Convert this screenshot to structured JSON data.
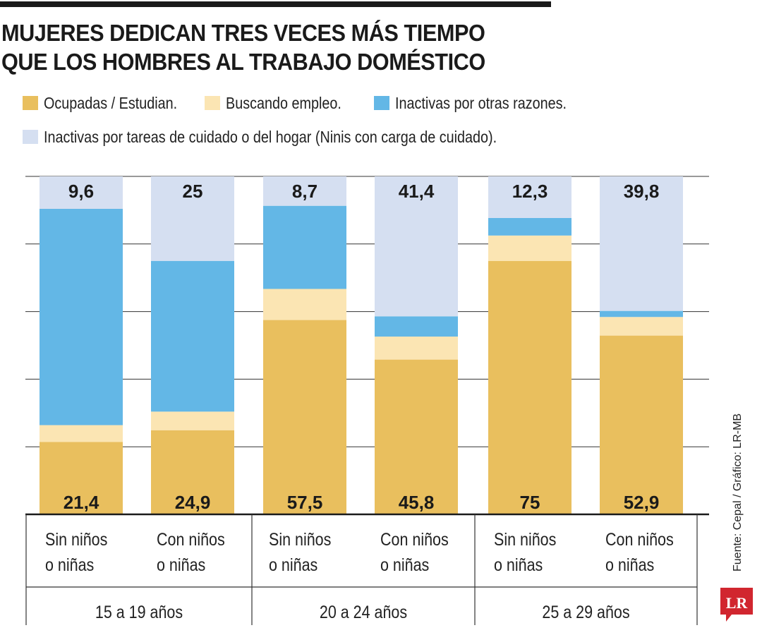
{
  "header": {
    "title_line1": "MUJERES DEDICAN TRES VECES MÁS TIEMPO",
    "title_line2": "QUE LOS HOMBRES AL TRABAJO DOMÉSTICO"
  },
  "legend": [
    {
      "label": "Ocupadas / Estudian.",
      "color": "#e9bf5e"
    },
    {
      "label": "Buscando empleo.",
      "color": "#fbe5b3"
    },
    {
      "label": "Inactivas por otras razones.",
      "color": "#63b7e6"
    },
    {
      "label": "Inactivas por tareas de cuidado o del hogar (Ninis con carga de cuidado).",
      "color": "#d5dff1"
    }
  ],
  "chart_data": {
    "type": "bar",
    "stacked": true,
    "ylim": [
      0,
      100
    ],
    "grid": true,
    "categories": [
      {
        "line1": "Sin niños",
        "line2": "o niñas",
        "group": "15 a 19 años"
      },
      {
        "line1": "Con niños",
        "line2": "o niñas",
        "group": "15 a 19 años"
      },
      {
        "line1": "Sin niños",
        "line2": "o niñas",
        "group": "20 a 24 años"
      },
      {
        "line1": "Con niños",
        "line2": "o niñas",
        "group": "20 a 24 años"
      },
      {
        "line1": "Sin niños",
        "line2": "o niñas",
        "group": "25 a 29 años"
      },
      {
        "line1": "Con niños",
        "line2": "o niñas",
        "group": "25 a 29 años"
      }
    ],
    "groups": [
      "15 a 19 años",
      "20 a 24 años",
      "25 a 29 años"
    ],
    "series": [
      {
        "name": "Ocupadas / Estudian.",
        "color": "#e9bf5e",
        "values": [
          21.4,
          24.9,
          57.5,
          45.8,
          75,
          52.9
        ],
        "labels": [
          "21,4",
          "24,9",
          "57,5",
          "45,8",
          "75",
          "52,9"
        ]
      },
      {
        "name": "Buscando empleo.",
        "color": "#fbe5b3",
        "values": [
          5,
          5.5,
          9.2,
          6.8,
          7.5,
          5.5
        ]
      },
      {
        "name": "Inactivas por otras razones.",
        "color": "#63b7e6",
        "values": [
          64,
          44.6,
          24.6,
          6,
          5.2,
          1.8
        ]
      },
      {
        "name": "Inactivas por tareas de cuidado o del hogar (Ninis con carga de cuidado).",
        "color": "#d5dff1",
        "values": [
          9.6,
          25,
          8.7,
          41.4,
          12.3,
          39.8
        ],
        "labels": [
          "9,6",
          "25",
          "8,7",
          "41,4",
          "12,3",
          "39,8"
        ]
      }
    ]
  },
  "footer": {
    "source": "Fuente: Cepal / Gráfico: LR-MB",
    "logo_text": "LR",
    "logo_color": "#d1262f"
  }
}
